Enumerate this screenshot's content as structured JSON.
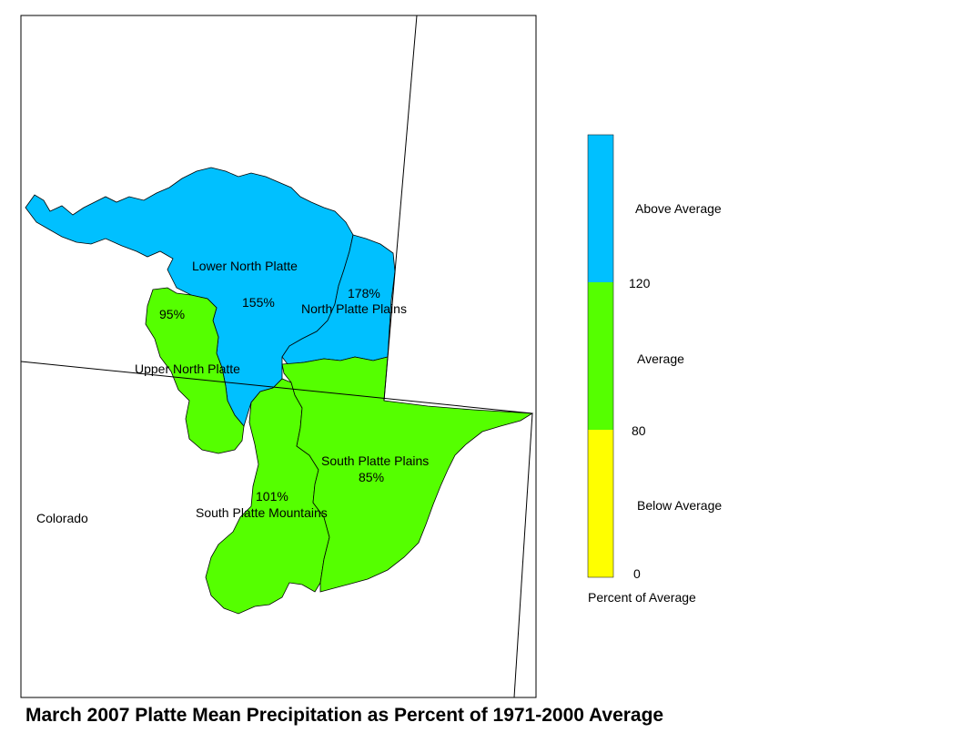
{
  "map": {
    "basins": [
      {
        "name": "Lower North Platte",
        "percent": "155%",
        "category": "Above Average"
      },
      {
        "name": "North Platte Plains",
        "percent": "178%",
        "category": "Above Average"
      },
      {
        "name": "Upper North Platte",
        "percent": "95%",
        "category": "Average"
      },
      {
        "name": "South Platte Plains",
        "percent": "85%",
        "category": "Average"
      },
      {
        "name": "South Platte Mountains",
        "percent": "101%",
        "category": "Average"
      }
    ],
    "state_label": "Colorado"
  },
  "legend": {
    "categories": [
      {
        "label": "Above Average",
        "color": "#00c0ff"
      },
      {
        "label": "Average",
        "color": "#55ff00"
      },
      {
        "label": "Below Average",
        "color": "#ffff00"
      }
    ],
    "thresholds": [
      "120",
      "80",
      "0"
    ],
    "caption": "Percent of Average"
  },
  "title": "March 2007 Platte Mean Precipitation as Percent of 1971-2000 Average"
}
